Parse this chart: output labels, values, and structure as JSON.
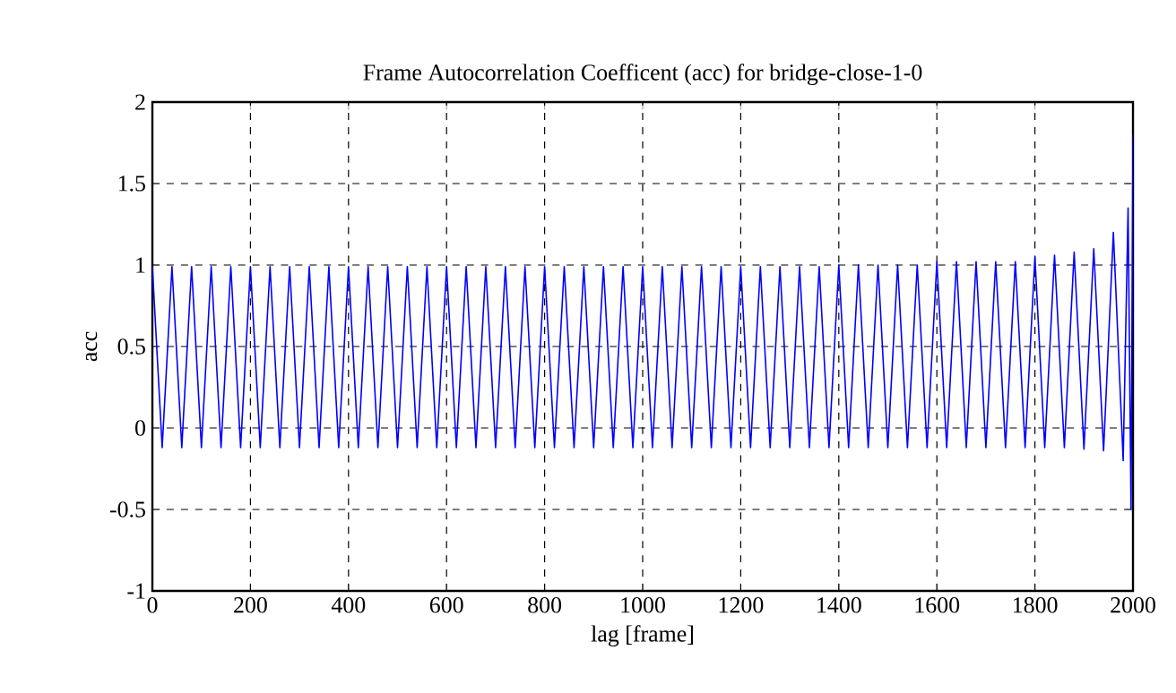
{
  "chart_data": {
    "type": "line",
    "title": "Frame Autocorrelation Coefficent (acc) for bridge-close-1-0",
    "xlabel": "lag [frame]",
    "ylabel": "acc",
    "xlim": [
      0,
      2000
    ],
    "ylim": [
      -1,
      2
    ],
    "xticks": [
      0,
      200,
      400,
      600,
      800,
      1000,
      1200,
      1400,
      1600,
      1800,
      2000
    ],
    "yticks": [
      -1,
      -0.5,
      0,
      0.5,
      1,
      1.5,
      2
    ],
    "grid": true,
    "series": [
      {
        "color": "#0000ff",
        "x": [
          0,
          20,
          40,
          60,
          80,
          100,
          120,
          140,
          160,
          180,
          200,
          220,
          240,
          260,
          280,
          300,
          320,
          340,
          360,
          380,
          400,
          420,
          440,
          460,
          480,
          500,
          520,
          540,
          560,
          580,
          600,
          620,
          640,
          660,
          680,
          700,
          720,
          740,
          760,
          780,
          800,
          820,
          840,
          860,
          880,
          900,
          920,
          940,
          960,
          980,
          1000,
          1020,
          1040,
          1060,
          1080,
          1100,
          1120,
          1140,
          1160,
          1180,
          1200,
          1220,
          1240,
          1260,
          1280,
          1300,
          1320,
          1340,
          1360,
          1380,
          1400,
          1420,
          1440,
          1460,
          1480,
          1500,
          1520,
          1540,
          1560,
          1580,
          1600,
          1620,
          1640,
          1660,
          1680,
          1700,
          1720,
          1740,
          1760,
          1780,
          1800,
          1820,
          1840,
          1860,
          1880,
          1900,
          1920,
          1940,
          1960,
          1980,
          1990,
          1996,
          2000
        ],
        "values": [
          0.99,
          -0.12,
          0.99,
          -0.12,
          0.99,
          -0.12,
          0.99,
          -0.12,
          0.99,
          -0.12,
          0.99,
          -0.12,
          0.99,
          -0.12,
          0.99,
          -0.12,
          0.99,
          -0.12,
          0.99,
          -0.12,
          0.99,
          -0.12,
          0.99,
          -0.12,
          0.99,
          -0.12,
          0.99,
          -0.12,
          0.99,
          -0.12,
          0.99,
          -0.12,
          0.99,
          -0.12,
          0.99,
          -0.12,
          0.99,
          -0.12,
          0.99,
          -0.12,
          0.99,
          -0.12,
          0.99,
          -0.12,
          0.99,
          -0.12,
          0.99,
          -0.12,
          0.99,
          -0.12,
          0.99,
          -0.12,
          0.99,
          -0.12,
          0.99,
          -0.12,
          0.99,
          -0.12,
          0.99,
          -0.12,
          0.99,
          -0.12,
          0.99,
          -0.12,
          0.99,
          -0.12,
          0.99,
          -0.12,
          0.99,
          -0.12,
          1.0,
          -0.12,
          1.0,
          -0.12,
          1.0,
          -0.12,
          1.0,
          -0.12,
          1.0,
          -0.12,
          1.02,
          -0.12,
          1.02,
          -0.12,
          1.02,
          -0.12,
          1.02,
          -0.12,
          1.02,
          -0.12,
          1.05,
          -0.12,
          1.06,
          -0.12,
          1.08,
          -0.13,
          1.1,
          -0.14,
          1.2,
          -0.2,
          1.35,
          -0.5,
          1.8
        ]
      }
    ]
  }
}
